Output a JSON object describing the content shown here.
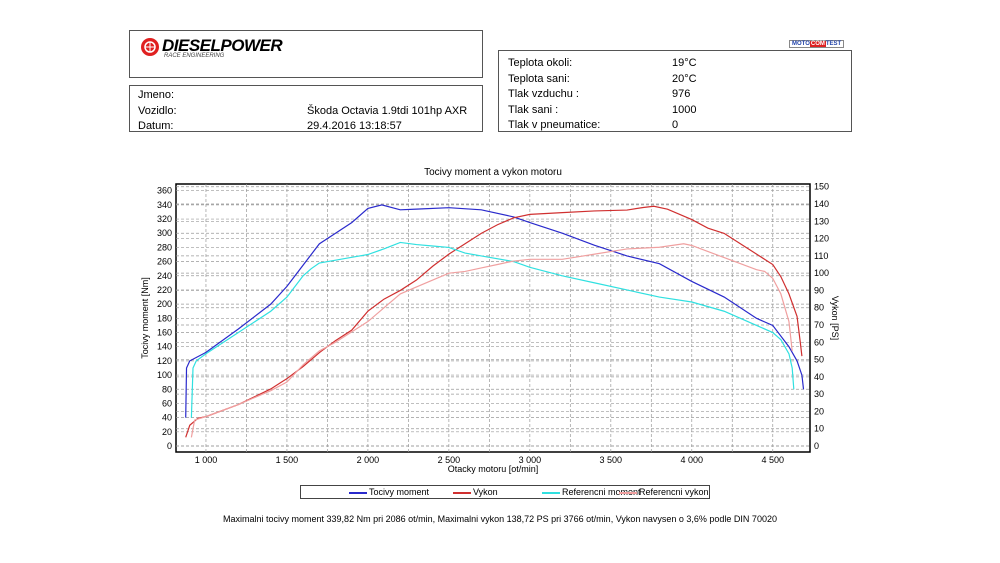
{
  "header": {
    "logo": {
      "brand": "DIESELPOWER",
      "sub": "RACE ENGINEERING"
    },
    "badge": {
      "left": "MOTO",
      "mid": "COM",
      "right": "TEST"
    },
    "vehicle": [
      {
        "label": "Jmeno:",
        "value": ""
      },
      {
        "label": "Vozidlo:",
        "value": "Škoda Octavia 1.9tdi 101hp AXR"
      },
      {
        "label": "Datum:",
        "value": "29.4.2016 13:18:57"
      }
    ],
    "conditions": [
      {
        "label": "Teplota okoli:",
        "value": "19°C"
      },
      {
        "label": "Teplota sani:",
        "value": "20°C"
      },
      {
        "label": "Tlak vzduchu :",
        "value": "976"
      },
      {
        "label": "Tlak sani :",
        "value": "1000"
      },
      {
        "label": "Tlak v pneumatice:",
        "value": "0"
      }
    ]
  },
  "footer": "Maximalni tocivy moment 339,82 Nm pri 2086 ot/min,  Maximalni vykon 138,72 PS pri 3766 ot/min,  Vykon navysen o 3,6% podle DIN 70020",
  "chart_data": {
    "type": "line",
    "title": "Tocivy moment a vykon motoru",
    "xlabel": "Otacky motoru [ot/min]",
    "ylabel": "Tocivy moment [Nm]",
    "y2label": "Vykon [PS]",
    "xlim": [
      815,
      4730
    ],
    "ylim": [
      0,
      368
    ],
    "y2lim": [
      0,
      151
    ],
    "xticks": [
      1000,
      1500,
      2000,
      2500,
      3000,
      3500,
      4000,
      4500
    ],
    "xtick_labels": [
      "1 000",
      "1 500",
      "2 000",
      "2 500",
      "3 000",
      "3 500",
      "4 000",
      "4 500"
    ],
    "yticks": [
      0,
      20,
      40,
      60,
      80,
      100,
      120,
      140,
      160,
      180,
      200,
      220,
      240,
      260,
      280,
      300,
      320,
      340,
      360
    ],
    "y2ticks": [
      0,
      10,
      20,
      30,
      40,
      50,
      60,
      70,
      80,
      90,
      100,
      110,
      120,
      130,
      140,
      150
    ],
    "grid": true,
    "legend_position": "bottom",
    "series": [
      {
        "name": "Tocivy moment",
        "axis": "left",
        "color": "#2a2acc",
        "points": [
          [
            875,
            40
          ],
          [
            880,
            110
          ],
          [
            900,
            120
          ],
          [
            1000,
            132
          ],
          [
            1200,
            165
          ],
          [
            1400,
            200
          ],
          [
            1500,
            225
          ],
          [
            1600,
            255
          ],
          [
            1700,
            285
          ],
          [
            1800,
            300
          ],
          [
            1900,
            315
          ],
          [
            2000,
            335
          ],
          [
            2086,
            340
          ],
          [
            2200,
            333
          ],
          [
            2300,
            334
          ],
          [
            2500,
            336
          ],
          [
            2700,
            333
          ],
          [
            2900,
            323
          ],
          [
            3000,
            315
          ],
          [
            3200,
            300
          ],
          [
            3400,
            283
          ],
          [
            3600,
            268
          ],
          [
            3800,
            257
          ],
          [
            4000,
            232
          ],
          [
            4200,
            210
          ],
          [
            4400,
            180
          ],
          [
            4500,
            170
          ],
          [
            4600,
            140
          ],
          [
            4650,
            120
          ],
          [
            4680,
            100
          ],
          [
            4690,
            80
          ]
        ]
      },
      {
        "name": "Vykon",
        "axis": "right",
        "color": "#d03030",
        "points": [
          [
            875,
            5
          ],
          [
            900,
            12
          ],
          [
            950,
            16
          ],
          [
            1000,
            17
          ],
          [
            1200,
            24
          ],
          [
            1400,
            33
          ],
          [
            1500,
            39
          ],
          [
            1600,
            46
          ],
          [
            1700,
            54
          ],
          [
            1800,
            61
          ],
          [
            1900,
            67
          ],
          [
            2000,
            78
          ],
          [
            2100,
            85
          ],
          [
            2200,
            90
          ],
          [
            2300,
            96
          ],
          [
            2400,
            104
          ],
          [
            2500,
            111
          ],
          [
            2600,
            117
          ],
          [
            2700,
            123
          ],
          [
            2800,
            128
          ],
          [
            2900,
            132
          ],
          [
            3000,
            134
          ],
          [
            3200,
            135
          ],
          [
            3400,
            136
          ],
          [
            3600,
            136.5
          ],
          [
            3700,
            138
          ],
          [
            3766,
            138.7
          ],
          [
            3850,
            137
          ],
          [
            4000,
            131
          ],
          [
            4100,
            126
          ],
          [
            4200,
            123
          ],
          [
            4300,
            117
          ],
          [
            4400,
            111
          ],
          [
            4500,
            105
          ],
          [
            4550,
            98
          ],
          [
            4600,
            88
          ],
          [
            4650,
            75
          ],
          [
            4670,
            60
          ],
          [
            4680,
            52
          ]
        ]
      },
      {
        "name": "Referencni moment",
        "axis": "left",
        "color": "#30e0e0",
        "points": [
          [
            910,
            40
          ],
          [
            920,
            110
          ],
          [
            940,
            120
          ],
          [
            1000,
            130
          ],
          [
            1200,
            160
          ],
          [
            1400,
            190
          ],
          [
            1500,
            210
          ],
          [
            1600,
            240
          ],
          [
            1650,
            250
          ],
          [
            1700,
            258
          ],
          [
            1800,
            262
          ],
          [
            1900,
            266
          ],
          [
            2000,
            270
          ],
          [
            2100,
            278
          ],
          [
            2200,
            287
          ],
          [
            2300,
            284
          ],
          [
            2400,
            282
          ],
          [
            2500,
            280
          ],
          [
            2600,
            272
          ],
          [
            2700,
            268
          ],
          [
            2900,
            260
          ],
          [
            3000,
            252
          ],
          [
            3200,
            240
          ],
          [
            3400,
            230
          ],
          [
            3600,
            220
          ],
          [
            3800,
            210
          ],
          [
            4000,
            203
          ],
          [
            4200,
            190
          ],
          [
            4400,
            170
          ],
          [
            4500,
            160
          ],
          [
            4550,
            150
          ],
          [
            4600,
            130
          ],
          [
            4620,
            110
          ],
          [
            4630,
            80
          ]
        ]
      },
      {
        "name": "Referencni vykon",
        "axis": "right",
        "color": "#f0a0a0",
        "points": [
          [
            910,
            5
          ],
          [
            930,
            15
          ],
          [
            1000,
            17
          ],
          [
            1200,
            24
          ],
          [
            1400,
            32
          ],
          [
            1500,
            37
          ],
          [
            1600,
            47
          ],
          [
            1700,
            55
          ],
          [
            1800,
            60
          ],
          [
            1900,
            66
          ],
          [
            2000,
            72
          ],
          [
            2100,
            80
          ],
          [
            2200,
            88
          ],
          [
            2300,
            92
          ],
          [
            2400,
            96
          ],
          [
            2500,
            100
          ],
          [
            2600,
            101
          ],
          [
            2700,
            103
          ],
          [
            2800,
            105
          ],
          [
            2900,
            107
          ],
          [
            3000,
            108
          ],
          [
            3200,
            108
          ],
          [
            3400,
            111
          ],
          [
            3600,
            114
          ],
          [
            3800,
            115
          ],
          [
            3950,
            117
          ],
          [
            4000,
            116
          ],
          [
            4200,
            109
          ],
          [
            4400,
            102
          ],
          [
            4450,
            101
          ],
          [
            4500,
            97
          ],
          [
            4550,
            88
          ],
          [
            4600,
            72
          ],
          [
            4620,
            55
          ]
        ]
      }
    ]
  }
}
